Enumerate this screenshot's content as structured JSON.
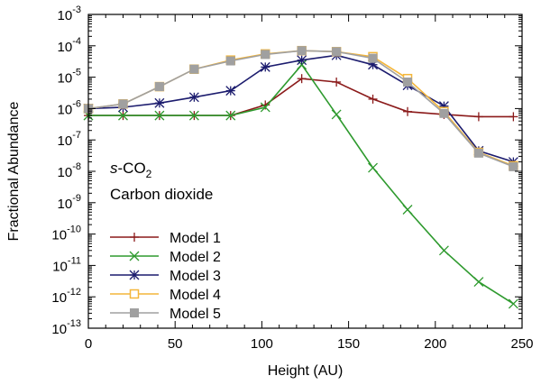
{
  "chart_data": {
    "type": "line",
    "xlabel": "Height (AU)",
    "ylabel": "Fractional Abundance",
    "yscale": "log",
    "xlim": [
      0,
      250
    ],
    "ylim_exp": [
      -13,
      -3
    ],
    "x_ticks": [
      0,
      50,
      100,
      150,
      200,
      250
    ],
    "y_tick_exps": [
      -13,
      -12,
      -11,
      -10,
      -9,
      -8,
      -7,
      -6,
      -5,
      -4,
      -3
    ],
    "annotation": {
      "species_prefix": "s",
      "species_main": "-CO",
      "species_sub": "2",
      "name": "Carbon dioxide"
    },
    "legend_position": "lower-left",
    "series": [
      {
        "name": "Model 1",
        "color": "#8b1a1a",
        "marker": "plus",
        "x": [
          0,
          20,
          41,
          61,
          82,
          102,
          123,
          143,
          164,
          184,
          205,
          225,
          245
        ],
        "y": [
          6e-07,
          6e-07,
          6e-07,
          6e-07,
          6e-07,
          1.3e-06,
          9e-06,
          7e-06,
          2e-06,
          8e-07,
          6.5e-07,
          5.5e-07,
          5.5e-07
        ]
      },
      {
        "name": "Model 2",
        "color": "#2e9a2e",
        "marker": "cross",
        "x": [
          0,
          20,
          41,
          61,
          82,
          102,
          123,
          143,
          164,
          184,
          205,
          225,
          245
        ],
        "y": [
          6e-07,
          6e-07,
          6e-07,
          6e-07,
          6e-07,
          1.1e-06,
          2.5e-05,
          6.5e-07,
          1.3e-08,
          6e-10,
          3e-11,
          3e-12,
          6e-13
        ]
      },
      {
        "name": "Model 3",
        "color": "#1c1c6e",
        "marker": "star",
        "x": [
          0,
          20,
          41,
          61,
          82,
          102,
          123,
          143,
          164,
          184,
          205,
          225,
          245
        ],
        "y": [
          1e-06,
          1.1e-06,
          1.5e-06,
          2.3e-06,
          3.7e-06,
          2.1e-05,
          3.5e-05,
          5e-05,
          2.5e-05,
          5.5e-06,
          1.2e-06,
          4.5e-08,
          2e-08
        ]
      },
      {
        "name": "Model 4",
        "color": "#f4b63a",
        "marker": "square-open",
        "x": [
          0,
          20,
          41,
          61,
          82,
          102,
          123,
          143,
          164,
          184,
          205,
          225,
          245
        ],
        "y": [
          1e-06,
          1.4e-06,
          5e-06,
          1.8e-05,
          3.5e-05,
          5.5e-05,
          7e-05,
          6.5e-05,
          4.5e-05,
          9e-06,
          8e-07,
          4e-08,
          1.5e-08
        ]
      },
      {
        "name": "Model 5",
        "color": "#a0a0a0",
        "marker": "square-filled",
        "x": [
          0,
          20,
          41,
          61,
          82,
          102,
          123,
          143,
          164,
          184,
          205,
          225,
          245
        ],
        "y": [
          1e-06,
          1.4e-06,
          5e-06,
          1.8e-05,
          3.3e-05,
          5.3e-05,
          7e-05,
          6.5e-05,
          4e-05,
          7e-06,
          7e-07,
          3.8e-08,
          1.4e-08
        ]
      }
    ]
  }
}
